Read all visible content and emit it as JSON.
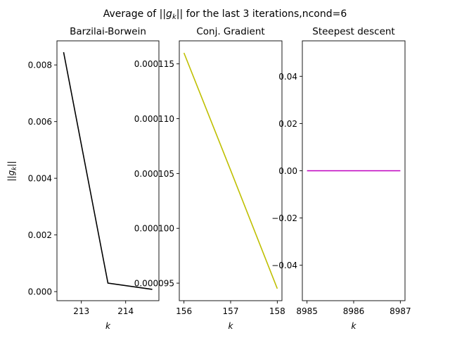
{
  "suptitle_prefix": "Average of ",
  "suptitle_math": "||g",
  "suptitle_sub": "k",
  "suptitle_suffix": "|| for the last 3 iterations,ncond=6",
  "ylabel_main": "||g",
  "ylabel_sub": "k",
  "ylabel_end": "||",
  "chart_data": [
    {
      "type": "line",
      "title": "Barzilai-Borwein",
      "xlabel": "k",
      "x": [
        212.6,
        213.6,
        214.6
      ],
      "y": [
        0.00845,
        0.0003,
        8e-05
      ],
      "color": "#000000",
      "xlim": [
        212.45,
        214.75
      ],
      "ylim": [
        -0.00032,
        0.00885
      ],
      "xticks": [
        213,
        214
      ],
      "xticklabels": [
        "213",
        "214"
      ],
      "yticks": [
        0.0,
        0.002,
        0.004,
        0.006,
        0.008
      ],
      "yticklabels": [
        "0.000",
        "0.002",
        "0.004",
        "0.006",
        "0.008"
      ]
    },
    {
      "type": "line",
      "title": "Conj. Gradient",
      "xlabel": "k",
      "x": [
        156,
        157,
        158
      ],
      "y": [
        0.000116,
        0.0001053,
        9.45e-05
      ],
      "color": "#bfbf00",
      "xlim": [
        155.9,
        158.1
      ],
      "ylim": [
        9.34e-05,
        0.0001171
      ],
      "xticks": [
        156,
        157,
        158
      ],
      "xticklabels": [
        "156",
        "157",
        "158"
      ],
      "yticks": [
        9.5e-05,
        0.0001,
        0.000105,
        0.00011,
        0.000115
      ],
      "yticklabels": [
        "0.000095",
        "0.000100",
        "0.000105",
        "0.000110",
        "0.000115"
      ]
    },
    {
      "type": "line",
      "title": "Steepest descent",
      "xlabel": "k",
      "x": [
        8985,
        8986,
        8987
      ],
      "y": [
        0,
        0,
        0
      ],
      "color": "#bf00bf",
      "xlim": [
        8984.9,
        8987.1
      ],
      "ylim": [
        -0.055,
        0.055
      ],
      "xticks": [
        8985,
        8986,
        8987
      ],
      "xticklabels": [
        "8985",
        "8986",
        "8987"
      ],
      "yticks": [
        -0.04,
        -0.02,
        0.0,
        0.02,
        0.04
      ],
      "yticklabels": [
        "−0.04",
        "−0.02",
        "0.00",
        "0.02",
        "0.04"
      ]
    }
  ]
}
